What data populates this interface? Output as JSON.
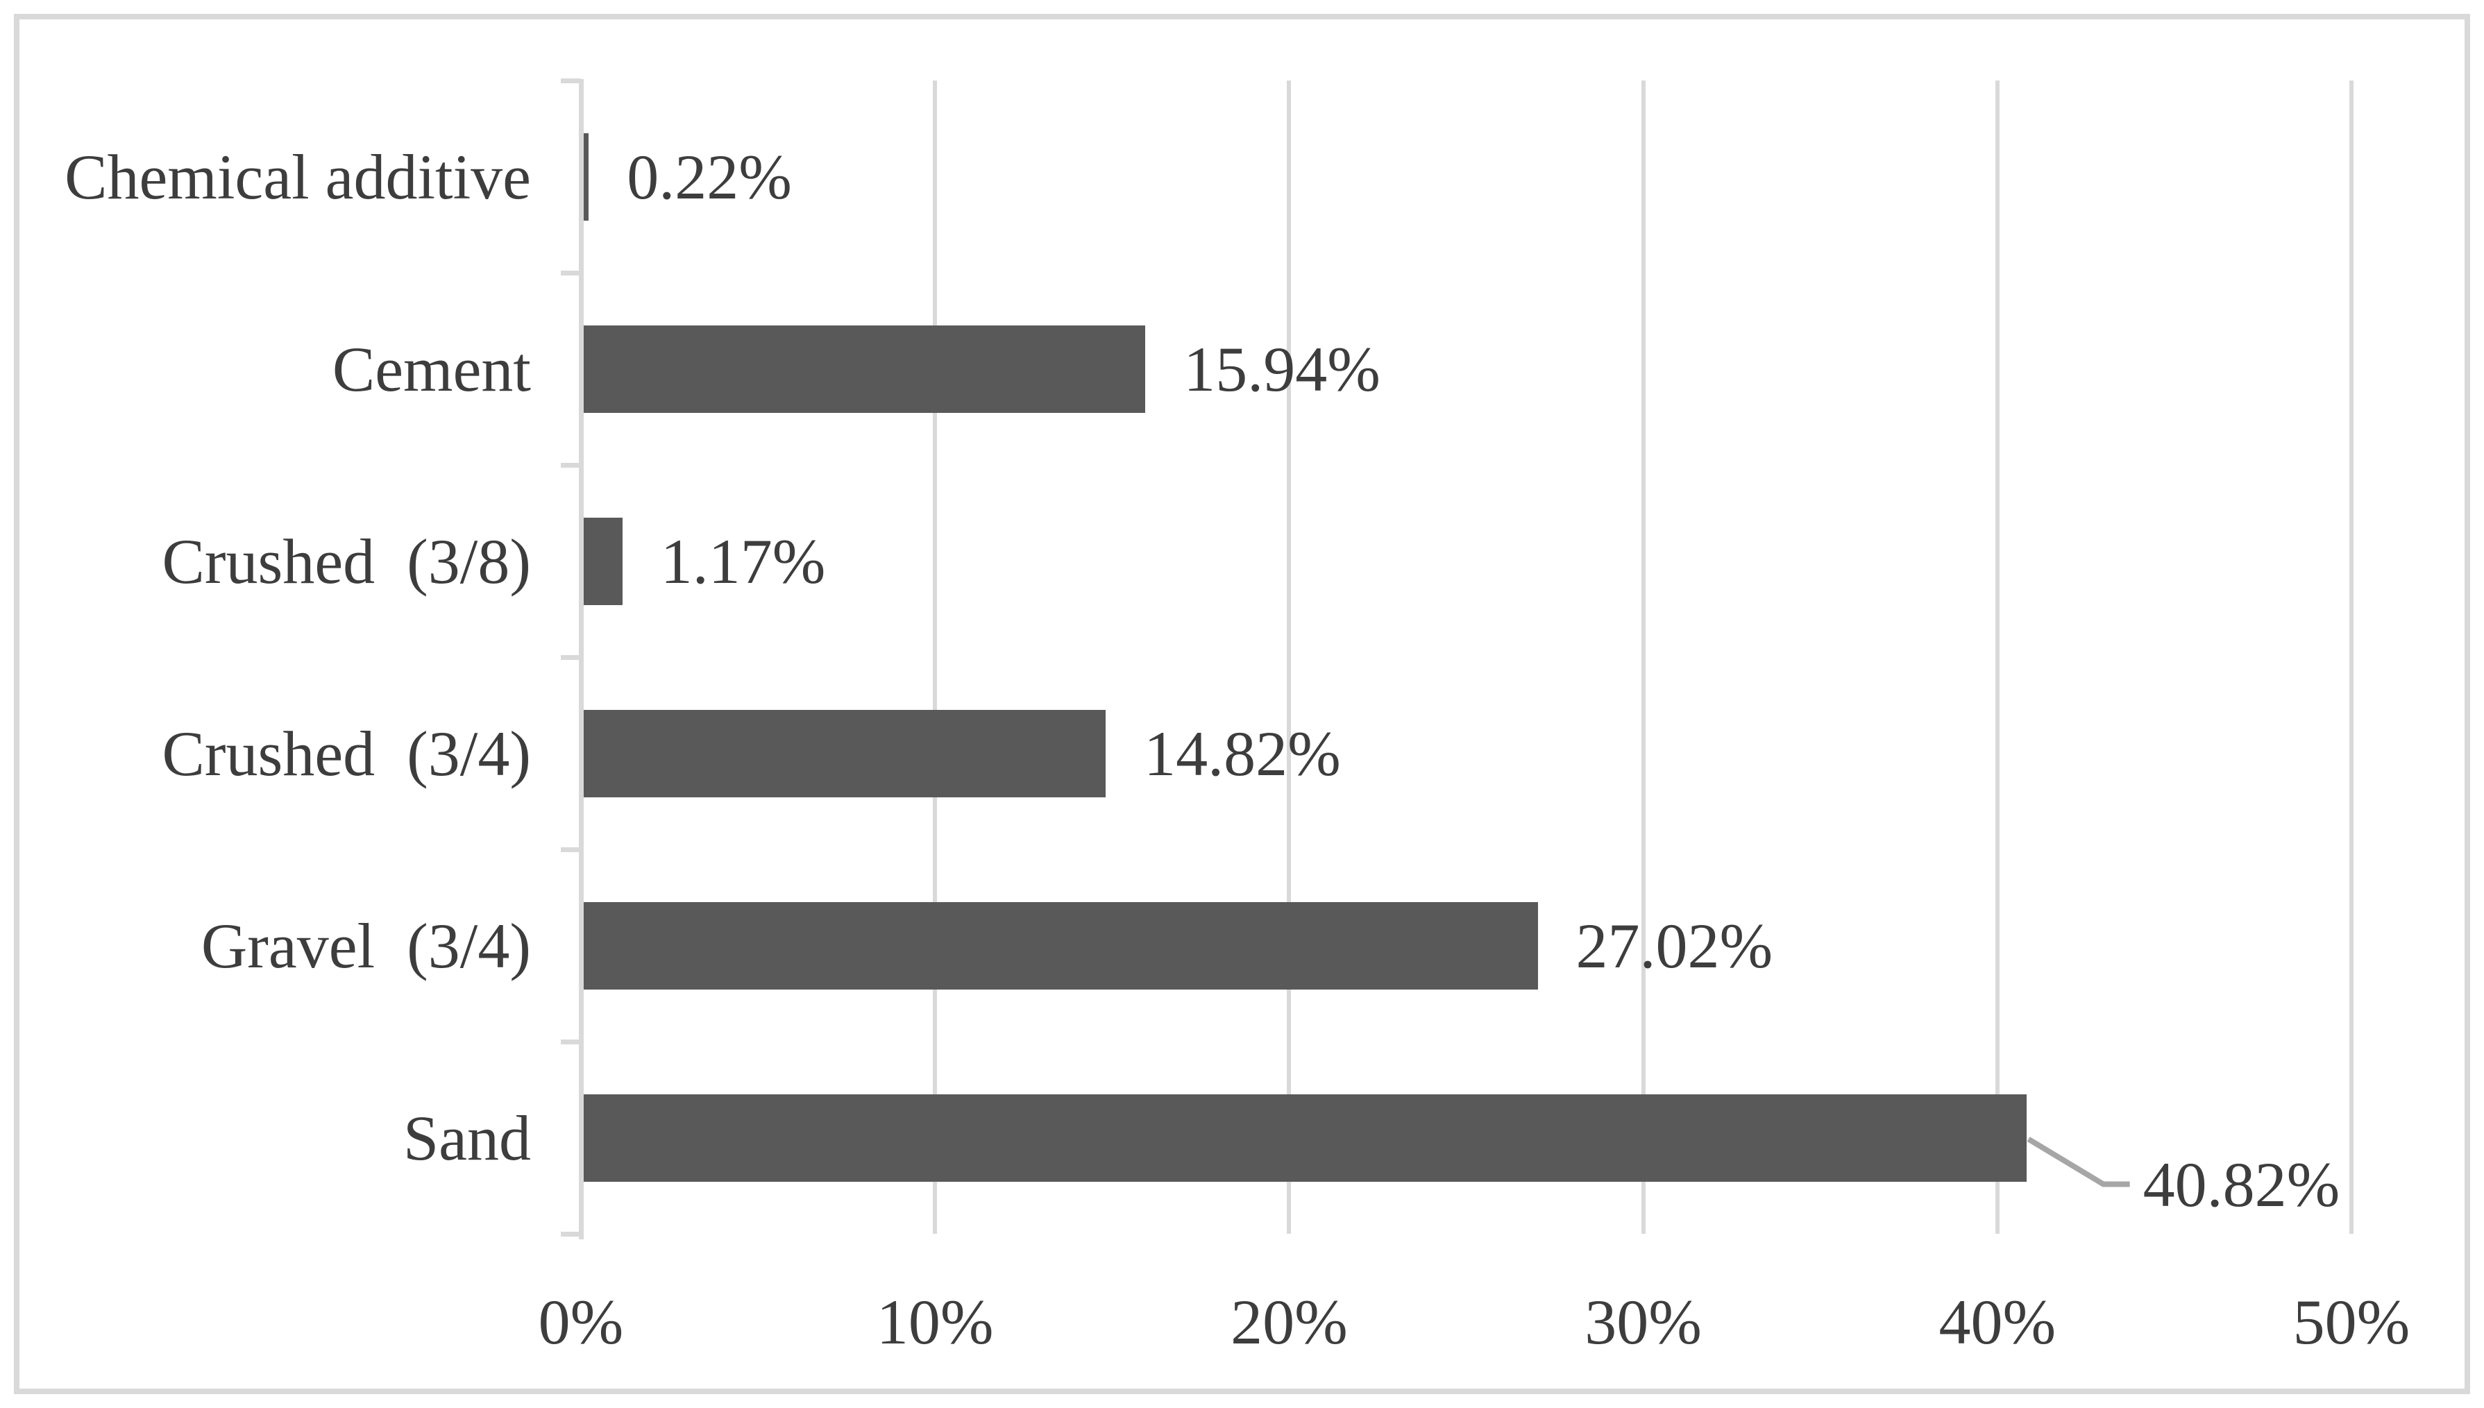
{
  "chart_data": {
    "type": "bar",
    "orientation": "horizontal",
    "title": "",
    "xlabel": "",
    "ylabel": "",
    "categories": [
      "Chemical additive",
      "Cement",
      "Crushed  (3/8)",
      "Crushed  (3/4)",
      "Gravel  (3/4)",
      "Sand"
    ],
    "values": [
      0.22,
      15.94,
      1.17,
      14.82,
      27.02,
      40.82
    ],
    "data_labels": [
      "0.22%",
      "15.94%",
      "1.17%",
      "14.82%",
      "27.02%",
      "40.82%"
    ],
    "x_ticks": [
      0,
      10,
      20,
      30,
      40,
      50
    ],
    "x_tick_labels": [
      "0%",
      "10%",
      "20%",
      "30%",
      "40%",
      "50%"
    ],
    "xlim": [
      0,
      50
    ],
    "grid": "vertical-gridlines-on",
    "legend": "none",
    "callout_index": 5,
    "colors": {
      "bar": "#595959",
      "text": "#3d3d3d",
      "grid": "#d9d9d9",
      "border": "#d9d9d9",
      "leader": "#a6a6a6",
      "background": "#ffffff"
    }
  }
}
